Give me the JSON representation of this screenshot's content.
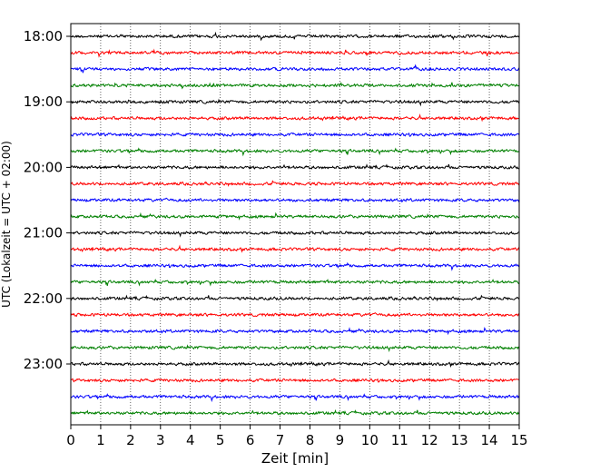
{
  "chart_data": {
    "type": "line",
    "xlabel": "Zeit  [min]",
    "ylabel": "UTC (Lokalzeit = UTC + 02:00)",
    "xlim": [
      0,
      15
    ],
    "x_ticks": [
      "0",
      "1",
      "2",
      "3",
      "4",
      "5",
      "6",
      "7",
      "8",
      "9",
      "10",
      "11",
      "12",
      "13",
      "14",
      "15"
    ],
    "y_ticks": [
      "18:00",
      "19:00",
      "20:00",
      "21:00",
      "22:00",
      "23:00"
    ],
    "grid": "vertical dotted",
    "trace_interval_min": 15,
    "first_trace": "18:00",
    "trace_count": 24,
    "colors": [
      "#000000",
      "#ff0000",
      "#0000ff",
      "#008000"
    ]
  }
}
